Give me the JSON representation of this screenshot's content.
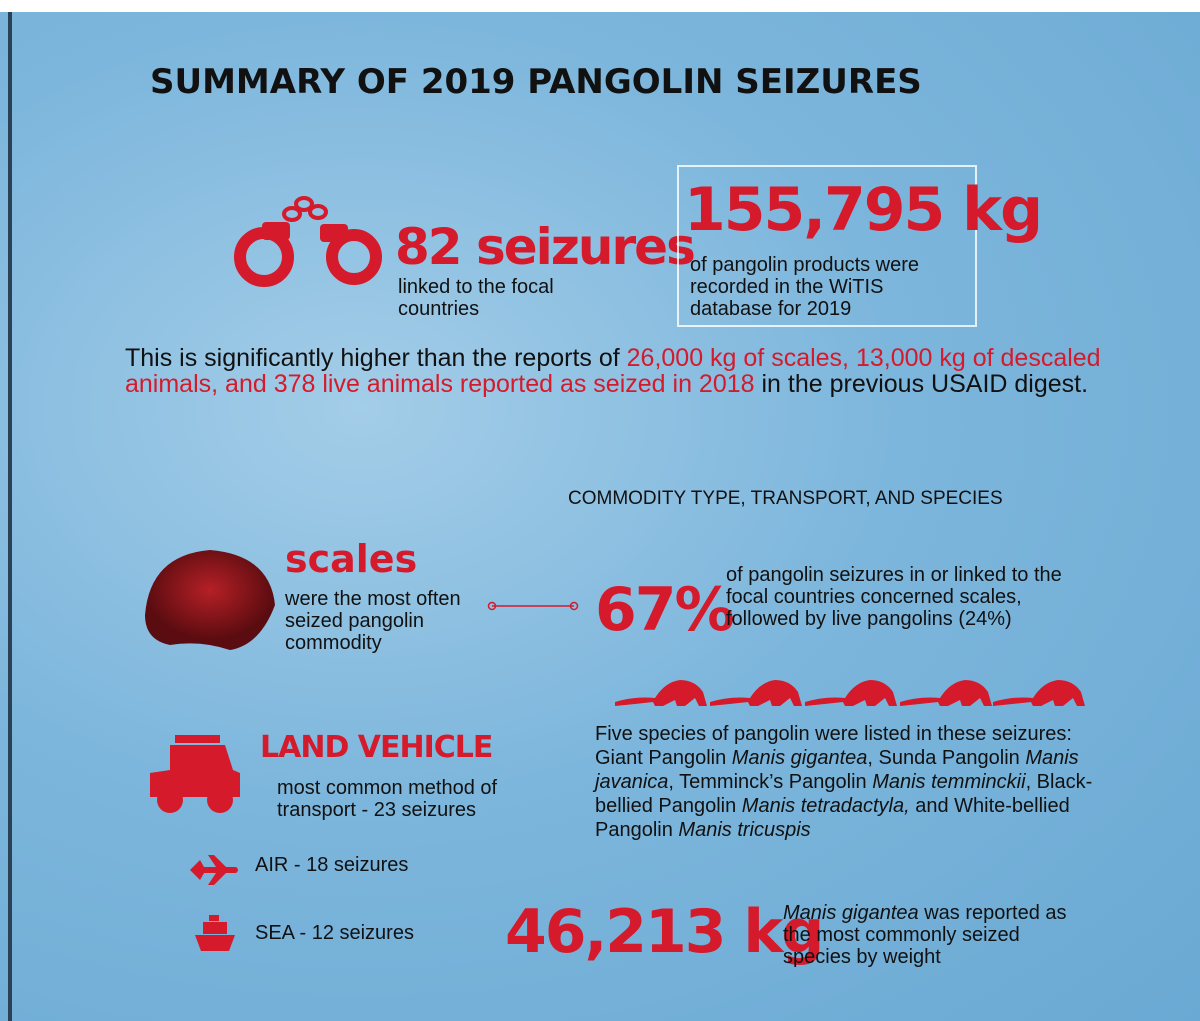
{
  "title": "SUMMARY OF 2019 PANGOLIN SEIZURES",
  "seizures": {
    "figure": "82 seizures",
    "caption": "linked to the focal countries"
  },
  "weight": {
    "figure": "155,795 kg",
    "caption": "of pangolin products were recorded in the WiTIS database for 2019"
  },
  "comparison": [
    {
      "text": "This is significantly higher than the reports of ",
      "highlight": false
    },
    {
      "text": "26,000 kg of  scales, 13,000 kg of descaled animals, and 378 live animals reported as seized in 2018",
      "highlight": true
    },
    {
      "text": " in the previous USAID digest.",
      "highlight": false
    }
  ],
  "section_heading": "COMMODITY TYPE, TRANSPORT, AND SPECIES",
  "commodity": {
    "label": "scales",
    "caption": "were the most often seized pangolin commodity"
  },
  "share": {
    "figure": "67%",
    "caption": "of pangolin seizures in or linked to the focal countries concerned scales, followed by live pangolins (24%)"
  },
  "species": [
    {
      "text": "Five species of pangolin were listed in these seizures: Giant Pangolin ",
      "italic": false
    },
    {
      "text": "Manis gigantea",
      "italic": true
    },
    {
      "text": ", Sunda Pangolin ",
      "italic": false
    },
    {
      "text": "Manis javanica",
      "italic": true
    },
    {
      "text": ", Temminck’s Pangolin ",
      "italic": false
    },
    {
      "text": "Manis temminckii",
      "italic": true
    },
    {
      "text": ", Black-bellied Pangolin ",
      "italic": false
    },
    {
      "text": "Manis tetradactyla,",
      "italic": true
    },
    {
      "text": " and White-bellied Pangolin ",
      "italic": false
    },
    {
      "text": "Manis tricuspis",
      "italic": true
    }
  ],
  "transport": {
    "main": {
      "label": "LAND VEHICLE",
      "caption": "most common method of transport - 23 seizures"
    },
    "others": [
      {
        "label": "AIR - 18 seizures"
      },
      {
        "label": "SEA - 12 seizures"
      }
    ]
  },
  "top_species": {
    "figure": "46,213 kg",
    "caption": [
      {
        "text": "Manis gigantea",
        "italic": true
      },
      {
        "text": " was reported as the most commonly seized species by weight",
        "italic": false
      }
    ]
  }
}
